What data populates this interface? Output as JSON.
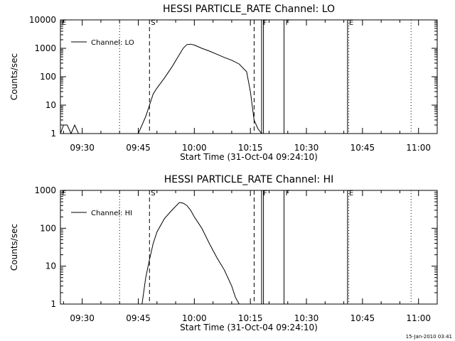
{
  "timestamp": "15-Jan-2010 03:41",
  "chart_data": [
    {
      "type": "line",
      "title": "HESSI PARTICLE_RATE Channel: LO",
      "xlabel": "Start Time (31-Oct-04 09:24:10)",
      "ylabel": "Counts/sec",
      "yscale": "log",
      "xlim": [
        "09:24:10",
        "11:05"
      ],
      "ylim": [
        1,
        10000
      ],
      "x_ticks": [
        "09:30",
        "09:45",
        "10:00",
        "10:15",
        "10:30",
        "10:45",
        "11:00"
      ],
      "y_ticks": [
        "1",
        "10",
        "100",
        "1000",
        "10000"
      ],
      "legend": "top-left",
      "series": [
        {
          "name": "Channel: LO",
          "x": [
            "09:24:10",
            "09:25",
            "09:26",
            "09:27",
            "09:28",
            "09:29",
            "09:30",
            "09:45",
            "09:47",
            "09:48",
            "09:49",
            "09:50",
            "09:52",
            "09:54",
            "09:56",
            "09:57",
            "09:58",
            "09:59",
            "10:00",
            "10:02",
            "10:04",
            "10:06",
            "10:08",
            "10:10",
            "10:12",
            "10:14",
            "10:15",
            "10:16",
            "10:17",
            "10:18"
          ],
          "y": [
            1,
            2,
            2,
            1,
            2,
            1,
            1,
            1,
            4,
            10,
            25,
            40,
            90,
            220,
            600,
            1000,
            1350,
            1400,
            1300,
            1000,
            800,
            620,
            480,
            380,
            280,
            150,
            30,
            3,
            1.5,
            1
          ]
        }
      ],
      "vlines": [
        {
          "label": "E",
          "time": "09:24:10",
          "style": "dotted"
        },
        {
          "label": "",
          "time": "09:40",
          "style": "dotted"
        },
        {
          "label": "S",
          "time": "09:48",
          "style": "dashed"
        },
        {
          "label": "",
          "time": "10:16",
          "style": "dashed"
        },
        {
          "label": "F",
          "time": "10:18",
          "style": "solid"
        },
        {
          "label": "",
          "time": "10:18:30",
          "style": "solid"
        },
        {
          "label": "F",
          "time": "10:24",
          "style": "solid"
        },
        {
          "label": "E",
          "time": "10:41",
          "style": "solid"
        },
        {
          "label": "",
          "time": "10:41:20",
          "style": "dotted"
        },
        {
          "label": "",
          "time": "10:58",
          "style": "dotted"
        }
      ]
    },
    {
      "type": "line",
      "title": "HESSI PARTICLE_RATE Channel: HI",
      "xlabel": "Start Time (31-Oct-04 09:24:10)",
      "ylabel": "Counts/sec",
      "yscale": "log",
      "xlim": [
        "09:24:10",
        "11:05"
      ],
      "ylim": [
        1,
        1000
      ],
      "x_ticks": [
        "09:30",
        "09:45",
        "10:00",
        "10:15",
        "10:30",
        "10:45",
        "11:00"
      ],
      "y_ticks": [
        "1",
        "10",
        "100",
        "1000"
      ],
      "legend": "top-left",
      "series": [
        {
          "name": "Channel: HI",
          "x": [
            "09:46",
            "09:47",
            "09:48",
            "09:49",
            "09:50",
            "09:52",
            "09:54",
            "09:56",
            "09:57",
            "09:58",
            "09:59",
            "10:00",
            "10:02",
            "10:04",
            "10:06",
            "10:08",
            "10:10",
            "10:11",
            "10:12"
          ],
          "y": [
            1,
            5,
            15,
            40,
            80,
            180,
            300,
            480,
            460,
            400,
            300,
            200,
            100,
            40,
            17,
            8,
            3,
            1.5,
            1
          ]
        }
      ],
      "vlines": [
        {
          "label": "E",
          "time": "09:24:10",
          "style": "dotted"
        },
        {
          "label": "",
          "time": "09:40",
          "style": "dotted"
        },
        {
          "label": "S",
          "time": "09:48",
          "style": "dashed"
        },
        {
          "label": "",
          "time": "10:16",
          "style": "dashed"
        },
        {
          "label": "F",
          "time": "10:18",
          "style": "solid"
        },
        {
          "label": "",
          "time": "10:18:30",
          "style": "solid"
        },
        {
          "label": "F",
          "time": "10:24",
          "style": "solid"
        },
        {
          "label": "E",
          "time": "10:41",
          "style": "solid"
        },
        {
          "label": "",
          "time": "10:41:20",
          "style": "dotted"
        },
        {
          "label": "",
          "time": "10:58",
          "style": "dotted"
        }
      ]
    }
  ]
}
